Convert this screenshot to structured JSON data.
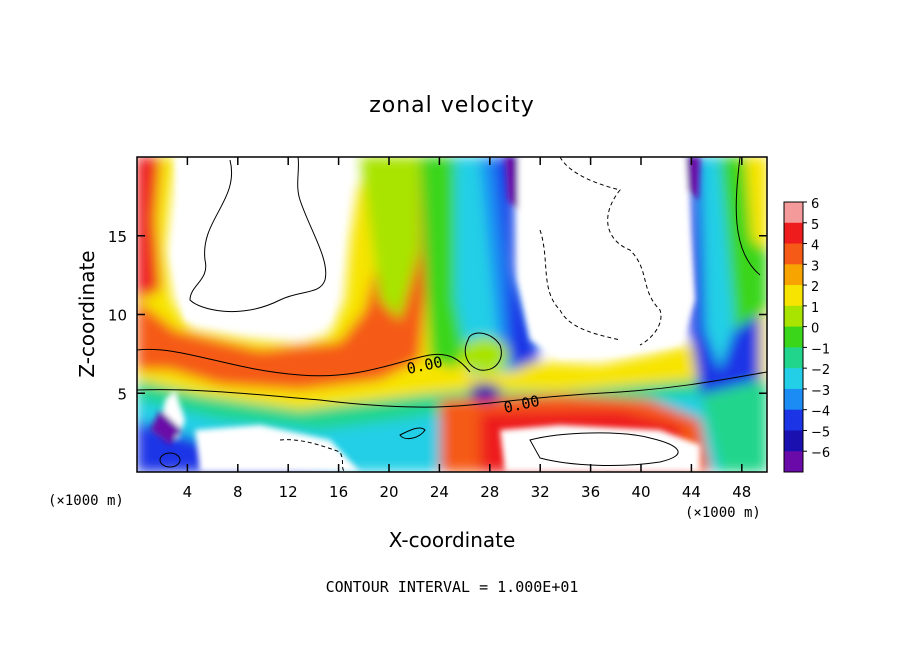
{
  "chart_data": {
    "type": "heatmap",
    "title": "zonal velocity",
    "xlabel": "X-coordinate",
    "ylabel": "Z-coordinate",
    "x_unit_left": "(×1000 m)",
    "x_unit_right": "(×1000 m)",
    "footer": "CONTOUR INTERVAL = 1.000E+01",
    "xlim": [
      0,
      50
    ],
    "ylim": [
      0,
      20
    ],
    "x_ticks": [
      4,
      8,
      12,
      16,
      20,
      24,
      28,
      32,
      36,
      40,
      44,
      48
    ],
    "y_ticks": [
      5,
      10,
      15
    ],
    "colorbar": {
      "levels": [
        6,
        5,
        4,
        3,
        2,
        1,
        0,
        -1,
        -2,
        -3,
        -4,
        -5,
        -6
      ],
      "labels": [
        "6",
        "5",
        "4",
        "3",
        "2",
        "1",
        "0",
        "−1",
        "−2",
        "−3",
        "−4",
        "−5",
        "−6"
      ],
      "colors": [
        "#f59a9a",
        "#ee1c1c",
        "#f55a16",
        "#f7a400",
        "#f7e400",
        "#a8e400",
        "#3ad61a",
        "#22d58c",
        "#22cfe6",
        "#1a8cf4",
        "#1a34e6",
        "#1a10b0",
        "#6a0aa8"
      ]
    },
    "contour_labels": [
      "0.00",
      "0.00"
    ],
    "grid": false,
    "legend_position": "right"
  }
}
